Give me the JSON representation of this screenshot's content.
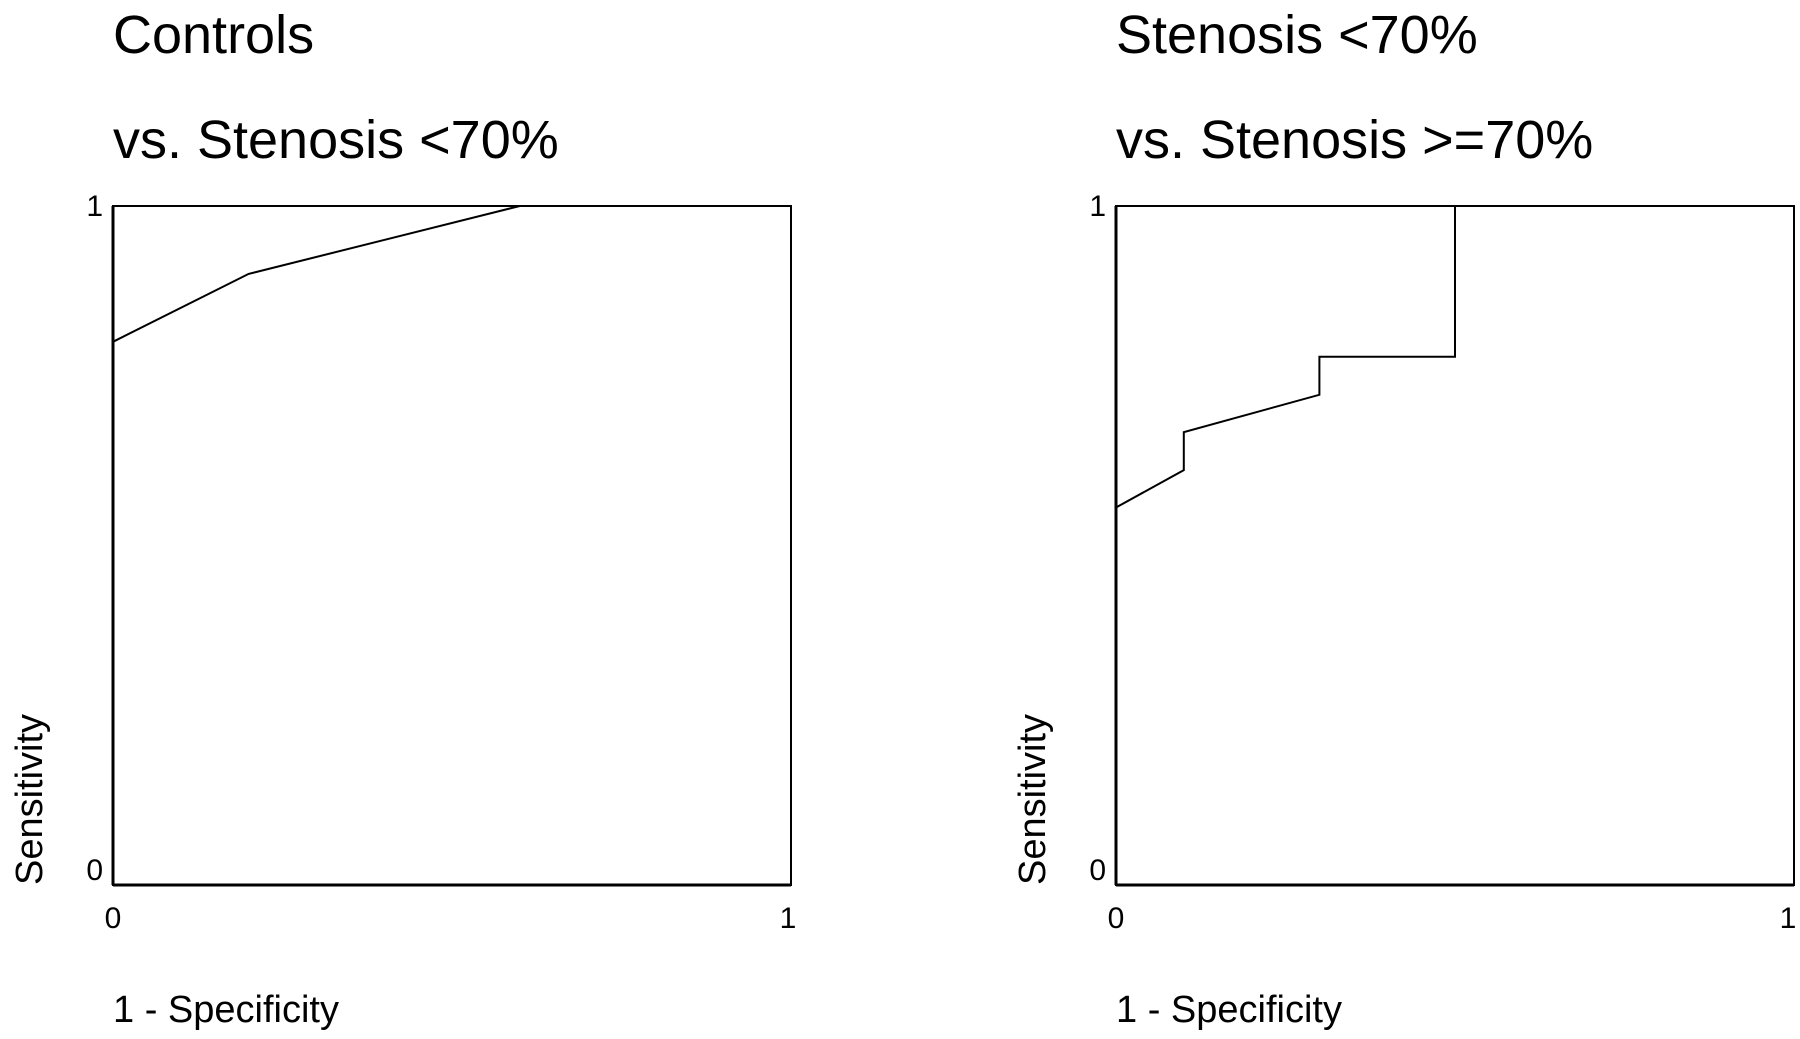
{
  "chart_data": [
    {
      "type": "line",
      "title": "Controls",
      "subtitle": "vs. Stenosis <70%",
      "xlabel": "1 - Specificity",
      "ylabel": "Sensitivity",
      "xlim": [
        0,
        1
      ],
      "ylim": [
        0,
        1
      ],
      "x_ticks": [
        "0",
        "1"
      ],
      "y_ticks": [
        "0",
        "1"
      ],
      "grid": false,
      "series": [
        {
          "x": [
            0,
            0.2,
            0.6,
            1.0
          ],
          "y": [
            0.8,
            0.9,
            1.0,
            1.0
          ]
        }
      ]
    },
    {
      "type": "line",
      "title": "Stenosis <70%",
      "subtitle": "vs. Stenosis >=70%",
      "xlabel": "1 - Specificity",
      "ylabel": "Sensitivity",
      "xlim": [
        0,
        1
      ],
      "ylim": [
        0,
        1
      ],
      "x_ticks": [
        "0",
        "1"
      ],
      "y_ticks": [
        "0",
        "1"
      ],
      "grid": false,
      "series": [
        {
          "x": [
            0,
            0.1,
            0.1,
            0.3,
            0.3,
            0.5,
            0.5,
            1.0
          ],
          "y": [
            0.556,
            0.611,
            0.667,
            0.722,
            0.778,
            0.778,
            1.0,
            1.0
          ]
        }
      ]
    }
  ]
}
